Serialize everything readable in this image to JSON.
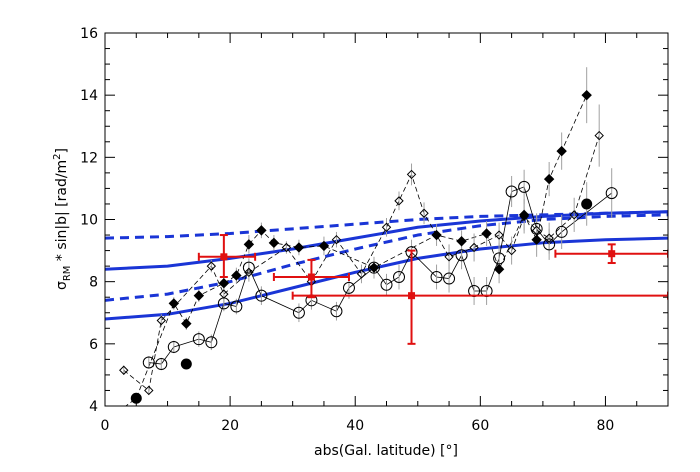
{
  "chart_data": {
    "type": "scatter",
    "title": "",
    "xlabel": "abs(Gal. latitude) [°]",
    "ylabel_parts": {
      "sigma": "σ",
      "sub": "RM",
      "rest": " * sin|b| [rad/m",
      "sup": "2",
      "end": "]"
    },
    "xlim": [
      0,
      90
    ],
    "ylim": [
      4,
      16
    ],
    "x_ticks": [
      0,
      20,
      40,
      60,
      80
    ],
    "y_ticks": [
      4,
      6,
      8,
      10,
      12,
      14,
      16
    ],
    "grid": false,
    "legend": "none",
    "colors": {
      "model": "#1a35d6",
      "red": "#e01010",
      "black": "#000000",
      "errorbar": "#a0a0a0"
    },
    "series": [
      {
        "marker": "open-diamond",
        "line": "dashed",
        "x": [
          3,
          7,
          9,
          17,
          19,
          23,
          29,
          33,
          37,
          41,
          45,
          47,
          49,
          51,
          55,
          59,
          63,
          65,
          67,
          69,
          71,
          75,
          79
        ],
        "y": [
          5.15,
          4.5,
          6.75,
          8.5,
          7.6,
          8.3,
          9.1,
          8.0,
          9.35,
          8.25,
          9.75,
          10.6,
          11.45,
          10.2,
          8.8,
          9.1,
          9.5,
          9.0,
          10.1,
          9.65,
          9.4,
          10.15,
          12.7
        ],
        "yerr": [
          0.15,
          0.15,
          0.2,
          0.2,
          0.3,
          0.3,
          0.2,
          0.25,
          0.25,
          0.3,
          0.3,
          0.3,
          0.35,
          0.35,
          0.4,
          0.45,
          0.4,
          0.45,
          0.55,
          0.5,
          0.5,
          0.55,
          1.0
        ]
      },
      {
        "marker": "filled-diamond",
        "line": "dashed",
        "x": [
          1,
          5,
          11,
          13,
          15,
          19,
          21,
          23,
          25,
          27,
          31,
          35,
          43,
          53,
          57,
          61,
          63,
          67,
          69,
          71,
          73,
          77
        ],
        "y": [
          3.65,
          4.25,
          7.3,
          6.65,
          7.55,
          7.95,
          8.2,
          9.2,
          9.65,
          9.25,
          9.1,
          9.15,
          8.45,
          9.5,
          9.3,
          9.55,
          8.4,
          10.15,
          9.35,
          11.3,
          12.2,
          14.0
        ],
        "yerr": [
          0.15,
          0.15,
          0.2,
          0.2,
          0.2,
          0.25,
          0.25,
          0.3,
          0.25,
          0.25,
          0.25,
          0.3,
          0.3,
          0.35,
          0.35,
          0.4,
          0.45,
          0.5,
          0.55,
          0.55,
          0.6,
          0.9
        ]
      },
      {
        "marker": "open-circle",
        "line": "solid",
        "x": [
          7,
          9,
          11,
          15,
          17,
          19,
          21,
          23,
          25,
          31,
          33,
          37,
          39,
          43,
          45,
          47,
          49,
          53,
          55,
          57,
          59,
          61,
          63,
          65,
          67,
          69,
          71,
          73,
          81
        ],
        "y": [
          5.4,
          5.35,
          5.9,
          6.15,
          6.05,
          7.3,
          7.2,
          8.45,
          7.55,
          7.0,
          7.4,
          7.05,
          7.8,
          8.45,
          7.9,
          8.15,
          8.95,
          8.15,
          8.1,
          8.85,
          7.7,
          7.7,
          8.75,
          10.9,
          11.05,
          9.7,
          9.2,
          9.6,
          10.85
        ],
        "yerr": [
          0.2,
          0.2,
          0.2,
          0.25,
          0.25,
          0.25,
          0.25,
          0.3,
          0.3,
          0.3,
          0.3,
          0.3,
          0.35,
          0.35,
          0.35,
          0.4,
          0.4,
          0.4,
          0.45,
          0.45,
          0.45,
          0.45,
          0.5,
          0.5,
          0.55,
          0.5,
          0.5,
          0.55,
          0.8
        ]
      },
      {
        "marker": "filled-circle",
        "line": "none",
        "x": [
          5,
          13,
          77
        ],
        "y": [
          4.25,
          5.35,
          10.5
        ],
        "yerr": [
          0.15,
          0.15,
          0.7
        ]
      }
    ],
    "red_points": [
      {
        "x": 19,
        "xmin": 15,
        "xmax": 24,
        "y": 8.8,
        "ymin": 8.15,
        "ymax": 9.5
      },
      {
        "x": 33,
        "xmin": 27,
        "xmax": 39,
        "y": 8.15,
        "ymin": 7.5,
        "ymax": 8.7
      },
      {
        "x": 49,
        "xmin": 30,
        "xmax": 90,
        "y": 7.55,
        "ymin": 6.0,
        "ymax": 9.0
      },
      {
        "x": 81,
        "xmin": 72,
        "xmax": 90,
        "y": 8.9,
        "ymin": 8.6,
        "ymax": 9.2
      }
    ],
    "model_curves": [
      {
        "style": "solid",
        "x": [
          0,
          10,
          20,
          30,
          40,
          50,
          60,
          70,
          80,
          90
        ],
        "y": [
          8.4,
          8.5,
          8.75,
          9.05,
          9.4,
          9.75,
          9.95,
          10.1,
          10.2,
          10.25
        ]
      },
      {
        "style": "dashed",
        "x": [
          0,
          10,
          20,
          30,
          40,
          50,
          60,
          70,
          80,
          90
        ],
        "y": [
          9.4,
          9.45,
          9.55,
          9.7,
          9.85,
          10.0,
          10.1,
          10.15,
          10.2,
          10.25
        ]
      },
      {
        "style": "solid",
        "x": [
          0,
          10,
          20,
          30,
          40,
          50,
          60,
          70,
          80,
          90
        ],
        "y": [
          6.8,
          6.95,
          7.3,
          7.8,
          8.3,
          8.75,
          9.05,
          9.25,
          9.35,
          9.4
        ]
      },
      {
        "style": "dashed",
        "x": [
          0,
          10,
          20,
          30,
          40,
          50,
          60,
          70,
          80,
          90
        ],
        "y": [
          7.4,
          7.6,
          8.0,
          8.55,
          9.05,
          9.5,
          9.8,
          10.0,
          10.1,
          10.15
        ]
      }
    ]
  }
}
